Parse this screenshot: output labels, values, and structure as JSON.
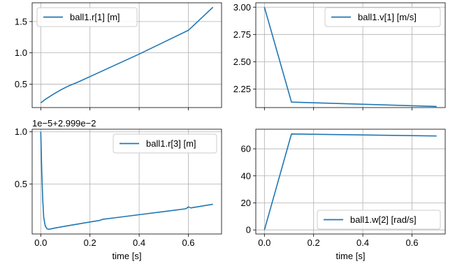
{
  "colors": {
    "line": "#1f77b4",
    "grid": "#b0b0b0",
    "axis": "#000000",
    "legend_edge": "#cccccc"
  },
  "chart_data": [
    {
      "type": "line",
      "title": "",
      "xlabel": "",
      "ylabel": "",
      "offset_text": "",
      "xlim": [
        -0.035,
        0.735
      ],
      "ylim": [
        0.125,
        1.8
      ],
      "xticks": [
        0.0,
        0.2,
        0.4,
        0.6
      ],
      "xtick_labels": [
        "",
        "",
        "",
        ""
      ],
      "yticks": [
        0.5,
        1.0,
        1.5
      ],
      "ytick_labels": [
        "0.5",
        "1.0",
        "1.5"
      ],
      "grid": true,
      "legend": "top-left",
      "series": [
        {
          "name": "ball1.r[1] [m]",
          "x": [
            0.0,
            0.02,
            0.05,
            0.08,
            0.11,
            0.15,
            0.2,
            0.3,
            0.4,
            0.5,
            0.6,
            0.7
          ],
          "y": [
            0.2,
            0.26,
            0.335,
            0.405,
            0.465,
            0.53,
            0.62,
            0.8,
            0.98,
            1.17,
            1.36,
            1.73
          ]
        }
      ]
    },
    {
      "type": "line",
      "title": "",
      "xlabel": "",
      "ylabel": "",
      "offset_text": "",
      "xlim": [
        -0.035,
        0.735
      ],
      "ylim": [
        2.08,
        3.04
      ],
      "xticks": [
        0.0,
        0.2,
        0.4,
        0.6
      ],
      "xtick_labels": [
        "",
        "",
        "",
        ""
      ],
      "yticks": [
        2.25,
        2.5,
        2.75,
        3.0
      ],
      "ytick_labels": [
        "2.25",
        "2.50",
        "2.75",
        "3.00"
      ],
      "grid": true,
      "legend": "top-right",
      "series": [
        {
          "name": "ball1.v[1] [m/s]",
          "x": [
            0.0,
            0.11,
            0.7
          ],
          "y": [
            3.0,
            2.13,
            2.09
          ]
        }
      ]
    },
    {
      "type": "line",
      "title": "",
      "xlabel": "time [s]",
      "ylabel": "",
      "offset_text": "1e−5+2.999e−2",
      "xlim": [
        -0.035,
        0.735
      ],
      "ylim": [
        0.02,
        1.025
      ],
      "xticks": [
        0.0,
        0.2,
        0.4,
        0.6
      ],
      "xtick_labels": [
        "0.0",
        "0.2",
        "0.4",
        "0.6"
      ],
      "yticks": [
        0.5,
        1.0
      ],
      "ytick_labels": [
        "0.5",
        "1.0"
      ],
      "grid": true,
      "legend": "top-right",
      "series": [
        {
          "name": "ball1.r[3] [m]",
          "x": [
            0.0,
            0.004,
            0.008,
            0.012,
            0.018,
            0.025,
            0.032,
            0.04,
            0.06,
            0.1,
            0.15,
            0.2,
            0.24,
            0.25,
            0.3,
            0.4,
            0.5,
            0.59,
            0.6,
            0.61,
            0.7
          ],
          "y": [
            1.0,
            0.62,
            0.35,
            0.18,
            0.1,
            0.07,
            0.065,
            0.068,
            0.078,
            0.095,
            0.115,
            0.135,
            0.15,
            0.16,
            0.175,
            0.205,
            0.235,
            0.262,
            0.28,
            0.27,
            0.305
          ]
        }
      ]
    },
    {
      "type": "line",
      "title": "",
      "xlabel": "time [s]",
      "ylabel": "",
      "offset_text": "",
      "xlim": [
        -0.035,
        0.735
      ],
      "ylim": [
        -3,
        74.5
      ],
      "xticks": [
        0.0,
        0.2,
        0.4,
        0.6
      ],
      "xtick_labels": [
        "0.0",
        "0.2",
        "0.4",
        "0.6"
      ],
      "yticks": [
        0,
        20,
        40,
        60
      ],
      "ytick_labels": [
        "0",
        "20",
        "40",
        "60"
      ],
      "grid": true,
      "legend": "bottom-right",
      "series": [
        {
          "name": "ball1.w[2] [rad/s]",
          "x": [
            0.0,
            0.11,
            0.7
          ],
          "y": [
            0.0,
            71.0,
            69.5
          ]
        }
      ]
    }
  ]
}
